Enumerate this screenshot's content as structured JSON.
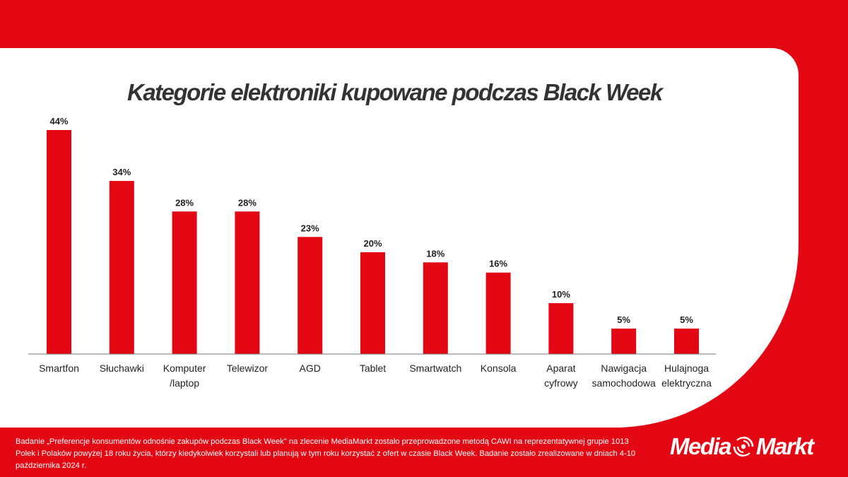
{
  "colors": {
    "brand": "#e30613",
    "panel": "#ffffff",
    "axis": "#777777",
    "text": "#222222"
  },
  "footnote": "Badanie „Preferencje konsumentów odnośnie zakupów podczas Black Week\" na zlecenie MediaMarkt zostało przeprowadzone metodą CAWI na reprezentatywnej grupie 1013 Polek i Polaków powyżej 18 roku życia, którzy kiedykolwiek korzystali lub planują w tym roku korzystać z ofert w czasie Black Week. Badanie zostało zrealizowane w dniach 4-10 października 2024 r.",
  "logo": {
    "left": "Media",
    "right": "Markt",
    "icon": "mediamarkt-swirl-icon"
  },
  "chart_data": {
    "type": "bar",
    "title": "Kategorie elektroniki kupowane podczas Black Week",
    "categories": [
      "Smartfon",
      "Słuchawki",
      "Komputer /laptop",
      "Telewizor",
      "AGD",
      "Tablet",
      "Smartwatch",
      "Konsola",
      "Aparat cyfrowy",
      "Nawigacja samochodowa",
      "Hulajnoga elektryczna"
    ],
    "category_lines": [
      [
        "Smartfon"
      ],
      [
        "Słuchawki"
      ],
      [
        "Komputer",
        "/laptop"
      ],
      [
        "Telewizor"
      ],
      [
        "AGD"
      ],
      [
        "Tablet"
      ],
      [
        "Smartwatch"
      ],
      [
        "Konsola"
      ],
      [
        "Aparat",
        "cyfrowy"
      ],
      [
        "Nawigacja",
        "samochodowa"
      ],
      [
        "Hulajnoga",
        "elektryczna"
      ]
    ],
    "values": [
      44,
      34,
      28,
      28,
      23,
      20,
      18,
      16,
      10,
      5,
      5
    ],
    "value_labels": [
      "44%",
      "34%",
      "28%",
      "28%",
      "23%",
      "20%",
      "18%",
      "16%",
      "10%",
      "5%",
      "5%"
    ],
    "unit": "%",
    "ylim": [
      0,
      44
    ],
    "grid": false,
    "legend": "none",
    "bar_color": "#e30613"
  }
}
